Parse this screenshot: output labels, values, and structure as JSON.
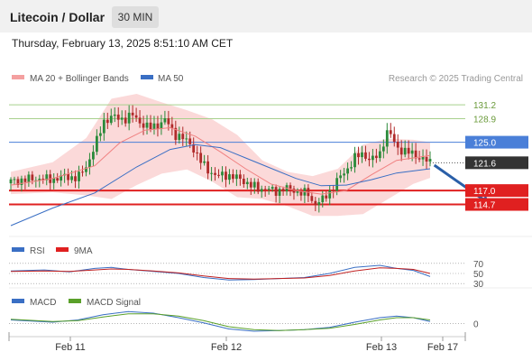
{
  "header": {
    "title": "Litecoin / Dollar",
    "timeframe": "30 MIN",
    "timestamp": "Thursday, February 13, 2025 8:51:10 AM CET"
  },
  "legend": {
    "bollinger": "MA 20 + Bollinger Bands",
    "ma50": "MA 50",
    "credit": "Research © 2025 Trading Central",
    "rsi": "RSI",
    "rsi_ma": "9MA",
    "macd": "MACD",
    "macd_signal": "MACD Signal"
  },
  "colors": {
    "candle_up": "#2a8a3a",
    "candle_down": "#b02a2a",
    "band": "#f9cccc",
    "ma20": "#f08080",
    "ma50": "#3a6fc4",
    "resistance": "#a8d08d",
    "pivot": "#4a7fd8",
    "support": "#e02020",
    "last": "#333333",
    "arrow": "#2a5fa8"
  },
  "chart_data": [
    {
      "type": "candlestick",
      "ylim": [
        109.4,
        134.2
      ],
      "x_ticks": [
        "Feb 11",
        "Feb 12",
        "Feb 13",
        "Feb 17"
      ],
      "levels": [
        {
          "value": 131.2,
          "label": "131.2",
          "kind": "resistance"
        },
        {
          "value": 128.9,
          "label": "128.9",
          "kind": "resistance"
        },
        {
          "value": 125.0,
          "label": "125.0",
          "kind": "pivot"
        },
        {
          "value": 121.6,
          "label": "121.6",
          "kind": "last"
        },
        {
          "value": 117.0,
          "label": "117.0",
          "kind": "support"
        },
        {
          "value": 114.7,
          "label": "114.7",
          "kind": "support"
        }
      ],
      "close_trajectory": [
        [
          0,
          118.5
        ],
        [
          6,
          119.0
        ],
        [
          9,
          118.8
        ],
        [
          13,
          119.3
        ],
        [
          16,
          119.1
        ],
        [
          18,
          121.0
        ],
        [
          21,
          126.0
        ],
        [
          22,
          128.4
        ],
        [
          24,
          129.2
        ],
        [
          27,
          128.8
        ],
        [
          29,
          129.5
        ],
        [
          31,
          128.2
        ],
        [
          33,
          127.3
        ],
        [
          35,
          127.9
        ],
        [
          37,
          128.7
        ],
        [
          39,
          126.4
        ],
        [
          41,
          125.6
        ],
        [
          43,
          124.7
        ],
        [
          45,
          122.0
        ],
        [
          47,
          120.5
        ],
        [
          49,
          119.3
        ],
        [
          51,
          119.7
        ],
        [
          53,
          119.2
        ],
        [
          55,
          118.9
        ],
        [
          57,
          117.9
        ],
        [
          59,
          117.3
        ],
        [
          61,
          117.4
        ],
        [
          63,
          116.7
        ],
        [
          65,
          117.4
        ],
        [
          67,
          117.1
        ],
        [
          69,
          116.7
        ],
        [
          71,
          116.4
        ],
        [
          72,
          114.9
        ],
        [
          74,
          115.2
        ],
        [
          76,
          116.7
        ],
        [
          78,
          118.8
        ],
        [
          80,
          120.3
        ],
        [
          82,
          122.4
        ],
        [
          84,
          123.1
        ],
        [
          86,
          122.0
        ],
        [
          88,
          123.0
        ],
        [
          89,
          125.4
        ],
        [
          90,
          127.1
        ],
        [
          92,
          124.1
        ],
        [
          94,
          123.5
        ],
        [
          96,
          123.0
        ],
        [
          98,
          122.3
        ],
        [
          100,
          121.6
        ]
      ],
      "ma20": [
        [
          0,
          117.9
        ],
        [
          10,
          119.0
        ],
        [
          20,
          121.1
        ],
        [
          26,
          124.9
        ],
        [
          32,
          127.0
        ],
        [
          38,
          127.4
        ],
        [
          44,
          126.0
        ],
        [
          50,
          123.4
        ],
        [
          56,
          120.6
        ],
        [
          62,
          118.1
        ],
        [
          68,
          117.0
        ],
        [
          74,
          116.4
        ],
        [
          80,
          117.0
        ],
        [
          86,
          119.6
        ],
        [
          92,
          122.0
        ],
        [
          100,
          122.8
        ]
      ],
      "ma50": [
        [
          0,
          111.2
        ],
        [
          10,
          114.1
        ],
        [
          20,
          116.6
        ],
        [
          30,
          120.9
        ],
        [
          38,
          123.8
        ],
        [
          44,
          124.6
        ],
        [
          50,
          124.1
        ],
        [
          56,
          122.4
        ],
        [
          62,
          120.7
        ],
        [
          68,
          119.0
        ],
        [
          74,
          117.8
        ],
        [
          80,
          117.9
        ],
        [
          86,
          118.8
        ],
        [
          92,
          119.9
        ],
        [
          100,
          120.6
        ]
      ],
      "bollinger_upper": [
        [
          0,
          120.1
        ],
        [
          10,
          121.7
        ],
        [
          18,
          125.7
        ],
        [
          24,
          132.2
        ],
        [
          30,
          133.0
        ],
        [
          36,
          131.6
        ],
        [
          42,
          130.3
        ],
        [
          48,
          128.8
        ],
        [
          54,
          126.2
        ],
        [
          60,
          122.0
        ],
        [
          66,
          120.1
        ],
        [
          72,
          119.4
        ],
        [
          78,
          120.6
        ],
        [
          84,
          124.6
        ],
        [
          90,
          125.6
        ],
        [
          96,
          125.4
        ],
        [
          100,
          125.0
        ]
      ],
      "bollinger_lower": [
        [
          0,
          116.4
        ],
        [
          10,
          116.7
        ],
        [
          18,
          116.2
        ],
        [
          24,
          115.6
        ],
        [
          30,
          117.9
        ],
        [
          36,
          119.8
        ],
        [
          42,
          120.5
        ],
        [
          48,
          118.5
        ],
        [
          54,
          115.9
        ],
        [
          60,
          115.6
        ],
        [
          66,
          114.4
        ],
        [
          72,
          112.8
        ],
        [
          78,
          112.8
        ],
        [
          84,
          113.1
        ],
        [
          90,
          115.6
        ],
        [
          96,
          118.1
        ],
        [
          100,
          119.1
        ]
      ],
      "forecast_arrow": {
        "from": [
          101,
          121.2
        ],
        "to": [
          114,
          114.7
        ]
      }
    },
    {
      "type": "line",
      "name": "RSI",
      "ylim": [
        25,
        75
      ],
      "y_ticks": [
        70,
        50,
        30
      ],
      "series": [
        {
          "name": "RSI",
          "points": [
            [
              0,
              55
            ],
            [
              8,
              57
            ],
            [
              14,
              53
            ],
            [
              20,
              60
            ],
            [
              24,
              62
            ],
            [
              28,
              58
            ],
            [
              34,
              54
            ],
            [
              40,
              50
            ],
            [
              46,
              42
            ],
            [
              52,
              37
            ],
            [
              58,
              38
            ],
            [
              64,
              40
            ],
            [
              70,
              42
            ],
            [
              76,
              50
            ],
            [
              82,
              62
            ],
            [
              88,
              66
            ],
            [
              92,
              60
            ],
            [
              96,
              56
            ],
            [
              100,
              44
            ]
          ]
        },
        {
          "name": "9MA",
          "points": [
            [
              0,
              54
            ],
            [
              8,
              55
            ],
            [
              14,
              54
            ],
            [
              20,
              57
            ],
            [
              24,
              59
            ],
            [
              28,
              58
            ],
            [
              34,
              55
            ],
            [
              40,
              51
            ],
            [
              46,
              45
            ],
            [
              52,
              40
            ],
            [
              58,
              39
            ],
            [
              64,
              40
            ],
            [
              70,
              41
            ],
            [
              76,
              46
            ],
            [
              82,
              55
            ],
            [
              88,
              61
            ],
            [
              92,
              60
            ],
            [
              96,
              58
            ],
            [
              100,
              50
            ]
          ]
        }
      ]
    },
    {
      "type": "line",
      "name": "MACD",
      "ylim": [
        -1.6,
        2.0
      ],
      "y_ticks": [
        0
      ],
      "series": [
        {
          "name": "MACD",
          "points": [
            [
              0,
              0.5
            ],
            [
              10,
              0.2
            ],
            [
              16,
              0.5
            ],
            [
              22,
              1.2
            ],
            [
              28,
              1.6
            ],
            [
              34,
              1.4
            ],
            [
              40,
              0.8
            ],
            [
              46,
              0.1
            ],
            [
              52,
              -0.7
            ],
            [
              58,
              -1.0
            ],
            [
              64,
              -0.9
            ],
            [
              70,
              -0.8
            ],
            [
              76,
              -0.5
            ],
            [
              82,
              0.2
            ],
            [
              88,
              0.8
            ],
            [
              92,
              1.0
            ],
            [
              96,
              0.8
            ],
            [
              100,
              0.3
            ]
          ]
        },
        {
          "name": "MACD Signal",
          "points": [
            [
              0,
              0.6
            ],
            [
              10,
              0.3
            ],
            [
              16,
              0.4
            ],
            [
              22,
              0.9
            ],
            [
              28,
              1.3
            ],
            [
              34,
              1.3
            ],
            [
              40,
              1.0
            ],
            [
              46,
              0.4
            ],
            [
              52,
              -0.4
            ],
            [
              58,
              -0.8
            ],
            [
              64,
              -0.9
            ],
            [
              70,
              -0.8
            ],
            [
              76,
              -0.6
            ],
            [
              82,
              -0.1
            ],
            [
              88,
              0.5
            ],
            [
              92,
              0.8
            ],
            [
              96,
              0.8
            ],
            [
              100,
              0.5
            ]
          ]
        }
      ]
    }
  ]
}
